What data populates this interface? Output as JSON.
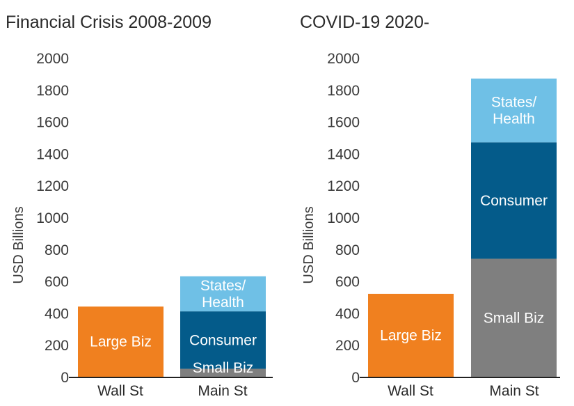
{
  "chart_data": [
    {
      "type": "bar",
      "stacked": true,
      "title": "Financial Crisis 2008-2009",
      "ylabel": "USD Billions",
      "ylim": [
        0,
        2000
      ],
      "yticks": [
        "0",
        "200",
        "400",
        "600",
        "800",
        "1000",
        "1200",
        "1400",
        "1600",
        "1800",
        "2000"
      ],
      "categories": [
        "Wall St",
        "Main St"
      ],
      "bars": [
        {
          "category": "Wall St",
          "segments": [
            {
              "name": "Large Biz",
              "label": [
                "Large Biz"
              ],
              "value": 440,
              "color": "#f0801f"
            }
          ]
        },
        {
          "category": "Main St",
          "segments": [
            {
              "name": "Small Biz",
              "label": [
                "Small Biz"
              ],
              "value": 50,
              "color": "#7f7f7f"
            },
            {
              "name": "Consumer",
              "label": [
                "Consumer"
              ],
              "value": 360,
              "color": "#045b8a"
            },
            {
              "name": "States/Health",
              "label": [
                "States/",
                "Health"
              ],
              "value": 220,
              "color": "#6fc0e6"
            }
          ]
        }
      ]
    },
    {
      "type": "bar",
      "stacked": true,
      "title": "COVID-19 2020-",
      "ylabel": "USD Billions",
      "ylim": [
        0,
        2000
      ],
      "yticks": [
        "0",
        "200",
        "400",
        "600",
        "800",
        "1000",
        "1200",
        "1400",
        "1600",
        "1800",
        "2000"
      ],
      "categories": [
        "Wall St",
        "Main St"
      ],
      "bars": [
        {
          "category": "Wall St",
          "segments": [
            {
              "name": "Large Biz",
              "label": [
                "Large Biz"
              ],
              "value": 520,
              "color": "#f0801f"
            }
          ]
        },
        {
          "category": "Main St",
          "segments": [
            {
              "name": "Small Biz",
              "label": [
                "Small Biz"
              ],
              "value": 740,
              "color": "#7f7f7f"
            },
            {
              "name": "Consumer",
              "label": [
                "Consumer"
              ],
              "value": 730,
              "color": "#045b8a"
            },
            {
              "name": "States/Health",
              "label": [
                "States/",
                "Health"
              ],
              "value": 400,
              "color": "#6fc0e6"
            }
          ]
        }
      ]
    }
  ]
}
